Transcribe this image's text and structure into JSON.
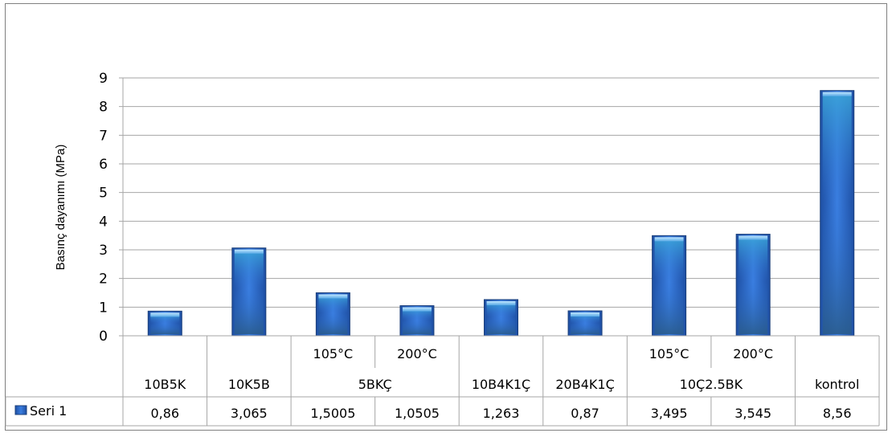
{
  "chart_data": {
    "type": "bar",
    "ylabel": "Basınç dayanımı   (MPa)",
    "ylim": [
      0,
      9
    ],
    "yticks": [
      0,
      1,
      2,
      3,
      4,
      5,
      6,
      7,
      8,
      9
    ],
    "grid": true,
    "legend": "in data table, left",
    "categories": [
      {
        "label": "10B5K",
        "group": null
      },
      {
        "label": "10K5B",
        "group": null
      },
      {
        "label": "105°C",
        "group": "5BKÇ"
      },
      {
        "label": "200°C",
        "group": "5BKÇ"
      },
      {
        "label": "10B4K1Ç",
        "group": null
      },
      {
        "label": "20B4K1Ç",
        "group": null
      },
      {
        "label": "105°C",
        "group": "10Ç2.5BK"
      },
      {
        "label": "200°C",
        "group": "10Ç2.5BK"
      },
      {
        "label": "kontrol",
        "group": null
      }
    ],
    "groups": [
      "5BKÇ",
      "10Ç2.5BK"
    ],
    "series": [
      {
        "name": "Seri 1",
        "color": "#2f6fd0",
        "values": [
          0.86,
          3.065,
          1.5005,
          1.0505,
          1.263,
          0.87,
          3.495,
          3.545,
          8.56
        ],
        "value_labels": [
          "0,86",
          "3,065",
          "1,5005",
          "1,0505",
          "1,263",
          "0,87",
          "3,495",
          "3,545",
          "8,56"
        ]
      }
    ]
  }
}
